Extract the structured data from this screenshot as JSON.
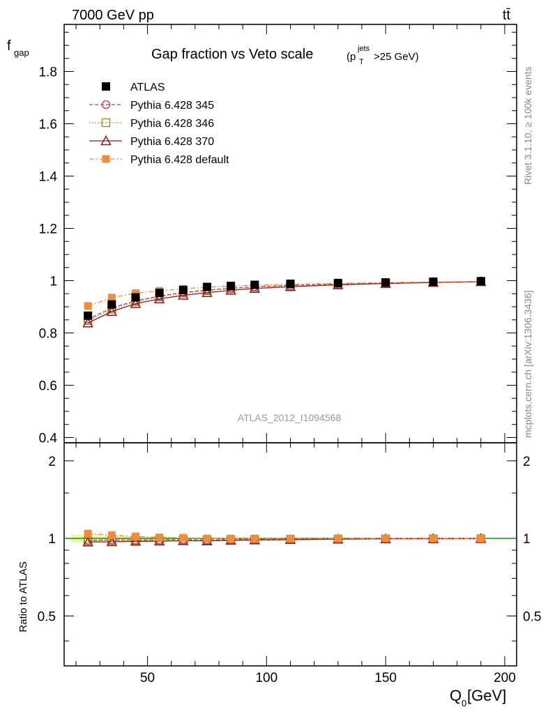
{
  "header": {
    "left": "7000 GeV pp",
    "right": "tt̄"
  },
  "side_labels": {
    "rivet": "Rivet 3.1.10, ≥ 100k events",
    "mcplots": "mcplots.cern.ch [arXiv:1306.3436]"
  },
  "chart_data": {
    "type": "scatter",
    "title": "Gap fraction vs Veto scale",
    "title_suffix": {
      "open": "(p",
      "sub": "T",
      "sup": "jets",
      "close": ">25 GeV)"
    },
    "analysis_tag": "ATLAS_2012_I1094568",
    "xlabel": {
      "main": "Q",
      "sub": "0",
      "unit": " [GeV]"
    },
    "ylabel": {
      "main": "f",
      "sub": "gap"
    },
    "ratio_ylabel": "Ratio to ATLAS",
    "xlim": [
      15,
      205
    ],
    "ylim": [
      0.38,
      1.98
    ],
    "ratio_ylim": [
      0.32,
      2.35
    ],
    "x_ticks": [
      "50",
      "100",
      "150",
      "200"
    ],
    "y_ticks": [
      "0.4",
      "0.6",
      "0.8",
      "1",
      "1.2",
      "1.4",
      "1.6",
      "1.8"
    ],
    "ratio_ticks": [
      "0.5",
      "1",
      "2"
    ],
    "legend_position": "top-left",
    "x": [
      25,
      35,
      45,
      55,
      65,
      75,
      85,
      95,
      110,
      130,
      150,
      170,
      190
    ],
    "series": [
      {
        "name": "ATLAS",
        "color": "#000000",
        "marker": "filled-square",
        "values": [
          0.866,
          0.909,
          0.936,
          0.953,
          0.964,
          0.976,
          0.98,
          0.984,
          0.988,
          0.991,
          0.993,
          0.996,
          0.998
        ]
      },
      {
        "name": "Pythia 6.428 345",
        "color": "#c0394b",
        "marker": "open-circle",
        "dash": "5,3",
        "values": [
          0.852,
          0.896,
          0.923,
          0.941,
          0.955,
          0.964,
          0.971,
          0.977,
          0.982,
          0.987,
          0.99,
          0.993,
          0.996
        ]
      },
      {
        "name": "Pythia 6.428 346",
        "color": "#a07a2a",
        "marker": "open-square",
        "dash": "1.5,2.5",
        "values": [
          0.847,
          0.891,
          0.92,
          0.938,
          0.952,
          0.962,
          0.969,
          0.975,
          0.981,
          0.986,
          0.99,
          0.993,
          0.996
        ]
      },
      {
        "name": "Pythia 6.428 370",
        "color": "#8b1a1a",
        "marker": "open-triangle",
        "dash": "",
        "values": [
          0.838,
          0.882,
          0.912,
          0.93,
          0.944,
          0.954,
          0.963,
          0.97,
          0.977,
          0.984,
          0.989,
          0.993,
          0.996
        ]
      },
      {
        "name": "Pythia 6.428 default",
        "color": "#f28c38",
        "marker": "filled-square",
        "dash": "7,3,2,3",
        "values": [
          0.903,
          0.935,
          0.952,
          0.961,
          0.969,
          0.975,
          0.979,
          0.983,
          0.986,
          0.99,
          0.993,
          0.995,
          0.997
        ]
      }
    ]
  }
}
